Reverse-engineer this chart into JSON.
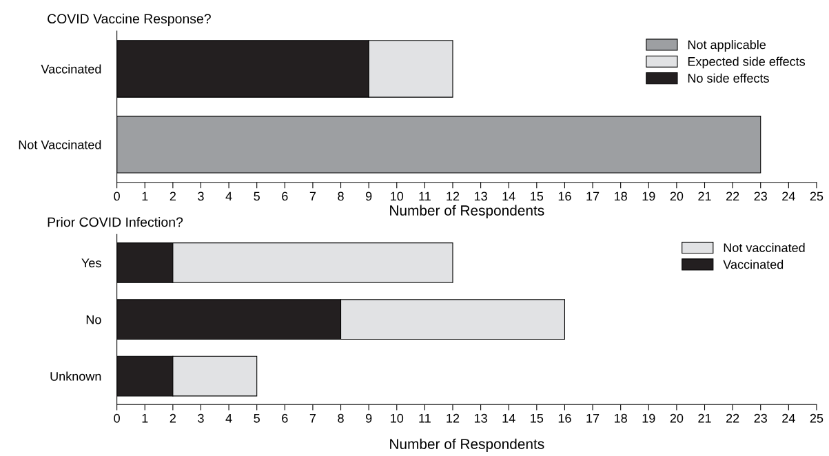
{
  "chart_data": [
    {
      "type": "bar",
      "orientation": "horizontal",
      "stacked": true,
      "title": "COVID Vaccine Response?",
      "xlabel": "Number of Respondents",
      "categories": [
        "Vaccinated",
        "Not Vaccinated"
      ],
      "series": [
        {
          "name": "No side effects",
          "color": "#231f20",
          "values": [
            9,
            null
          ]
        },
        {
          "name": "Expected side effects",
          "color": "#e1e2e4",
          "values": [
            3,
            null
          ]
        },
        {
          "name": "Not applicable",
          "color": "#9d9fa2",
          "values": [
            null,
            23
          ]
        }
      ],
      "xlim": [
        0,
        25
      ],
      "xticks": [
        0,
        1,
        2,
        3,
        4,
        5,
        6,
        7,
        8,
        9,
        10,
        11,
        12,
        13,
        14,
        15,
        16,
        17,
        18,
        19,
        20,
        21,
        22,
        23,
        24,
        25
      ],
      "grid": false,
      "legend": "top right"
    },
    {
      "type": "bar",
      "orientation": "horizontal",
      "stacked": true,
      "title": "Prior COVID Infection?",
      "xlabel": "Number of Respondents",
      "categories": [
        "Yes",
        "No",
        "Unknown"
      ],
      "series": [
        {
          "name": "Vaccinated",
          "color": "#231f20",
          "values": [
            2,
            8,
            2
          ]
        },
        {
          "name": "Not vaccinated",
          "color": "#e1e2e4",
          "values": [
            10,
            8,
            3
          ]
        }
      ],
      "xlim": [
        0,
        25
      ],
      "xticks": [
        0,
        1,
        2,
        3,
        4,
        5,
        6,
        7,
        8,
        9,
        10,
        11,
        12,
        13,
        14,
        15,
        16,
        17,
        18,
        19,
        20,
        21,
        22,
        23,
        24,
        25
      ],
      "grid": false,
      "legend": "top right"
    }
  ]
}
